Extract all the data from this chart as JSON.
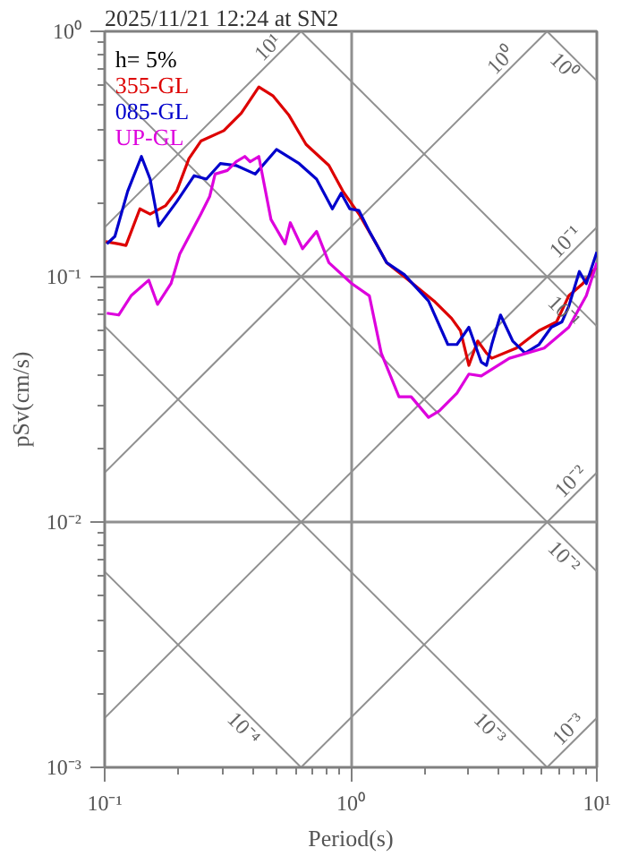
{
  "chart_data": {
    "type": "line",
    "title": "2025/11/21 12:24 at SN2",
    "xlabel": "Period(s)",
    "ylabel": "pSv(cm/s)",
    "log": "xy",
    "grid": true,
    "legend": "top left",
    "xlim": [
      0.1,
      10
    ],
    "ylim": [
      0.001,
      1
    ],
    "xticks": [
      {
        "value": 0.1,
        "label": "10⁻¹"
      },
      {
        "value": 1,
        "label": "10⁰"
      },
      {
        "value": 10,
        "label": "10¹"
      }
    ],
    "yticks": [
      {
        "value": 0.001,
        "label": "10⁻³"
      },
      {
        "value": 0.01,
        "label": "10⁻²"
      },
      {
        "value": 0.1,
        "label": "10⁻¹"
      },
      {
        "value": 1,
        "label": "10⁰"
      }
    ],
    "annotations": [
      "h= 5%",
      {
        "text": "10¹",
        "x": 0.499,
        "y": 0.794
      },
      {
        "text": "10⁰",
        "x": 4.41,
        "y": 0.702
      },
      {
        "text": "10⁻¹",
        "x": 8.08,
        "y": 0.128
      },
      {
        "text": "10⁻²",
        "x": 8.49,
        "y": 0.0135
      },
      {
        "text": "10⁻³",
        "x": 8.3,
        "y": 0.00132
      },
      {
        "text": "10⁰",
        "x": 8.0,
        "y": 0.785
      },
      {
        "text": "10⁻¹",
        "x": 8.0,
        "y": 0.0785
      },
      {
        "text": "10⁻²",
        "x": 8.0,
        "y": 0.00785
      },
      {
        "text": "10⁻³",
        "x": 4.0,
        "y": 0.00157
      },
      {
        "text": "10⁻⁴",
        "x": 0.4,
        "y": 0.00157
      }
    ],
    "series": [
      {
        "color": "#909090",
        "x": [
          0.1,
          0.628
        ],
        "values": [
          0.159,
          1
        ]
      },
      {
        "color": "#909090",
        "x": [
          0.1,
          6.28
        ],
        "values": [
          0.0159,
          1
        ]
      },
      {
        "color": "#909090",
        "x": [
          0.1,
          10
        ],
        "values": [
          0.00159,
          0.159
        ]
      },
      {
        "color": "#909090",
        "x": [
          0.628,
          10
        ],
        "values": [
          0.001,
          0.0159
        ]
      },
      {
        "color": "#909090",
        "x": [
          6.28,
          10
        ],
        "values": [
          0.001,
          0.00159
        ]
      },
      {
        "color": "#909090",
        "x": [
          6.28,
          10
        ],
        "values": [
          1,
          0.628
        ]
      },
      {
        "color": "#909090",
        "x": [
          0.628,
          10
        ],
        "values": [
          1,
          0.0628
        ]
      },
      {
        "color": "#909090",
        "x": [
          0.1,
          10
        ],
        "values": [
          0.628,
          0.00628
        ]
      },
      {
        "color": "#909090",
        "x": [
          0.1,
          6.28
        ],
        "values": [
          0.0628,
          0.001
        ]
      },
      {
        "color": "#909090",
        "x": [
          0.1,
          0.628
        ],
        "values": [
          0.00628,
          0.001
        ]
      },
      {
        "name": "355-GL",
        "color": "#dd0000",
        "x": [
          0.101,
          0.114,
          0.122,
          0.139,
          0.153,
          0.177,
          0.196,
          0.22,
          0.246,
          0.305,
          0.359,
          0.423,
          0.482,
          0.559,
          0.658,
          0.815,
          0.929,
          1.08,
          1.27,
          1.4,
          1.65,
          2.18,
          2.57,
          2.79,
          3.02,
          3.28,
          3.56,
          3.74,
          4.71,
          5.82,
          6.86,
          7.69,
          8.77,
          10
        ],
        "values": [
          0.139,
          0.136,
          0.134,
          0.189,
          0.18,
          0.195,
          0.223,
          0.303,
          0.357,
          0.394,
          0.464,
          0.593,
          0.547,
          0.457,
          0.346,
          0.284,
          0.223,
          0.18,
          0.136,
          0.114,
          0.1,
          0.0796,
          0.0676,
          0.0603,
          0.0435,
          0.0547,
          0.0488,
          0.0465,
          0.0512,
          0.0603,
          0.0654,
          0.0836,
          0.0937,
          0.11
        ]
      },
      {
        "name": "085-GL",
        "color": "#0000cc",
        "x": [
          0.102,
          0.11,
          0.124,
          0.141,
          0.153,
          0.166,
          0.196,
          0.231,
          0.259,
          0.295,
          0.342,
          0.409,
          0.499,
          0.617,
          0.726,
          0.842,
          0.914,
          0.991,
          1.08,
          1.19,
          1.4,
          1.65,
          2.07,
          2.48,
          2.7,
          3.02,
          3.39,
          3.56,
          3.74,
          4.06,
          4.55,
          5.11,
          5.82,
          6.53,
          7.21,
          7.69,
          8.49,
          9.06,
          10
        ],
        "values": [
          0.136,
          0.146,
          0.223,
          0.309,
          0.25,
          0.161,
          0.202,
          0.258,
          0.25,
          0.289,
          0.284,
          0.262,
          0.33,
          0.289,
          0.25,
          0.189,
          0.219,
          0.189,
          0.186,
          0.153,
          0.114,
          0.102,
          0.0796,
          0.0529,
          0.0529,
          0.0622,
          0.0449,
          0.0435,
          0.0529,
          0.0698,
          0.0547,
          0.0488,
          0.0529,
          0.0622,
          0.0654,
          0.0757,
          0.105,
          0.0937,
          0.126
        ]
      },
      {
        "name": "UP-GL",
        "color": "#dd00dd",
        "x": [
          0.102,
          0.114,
          0.128,
          0.151,
          0.164,
          0.186,
          0.202,
          0.246,
          0.267,
          0.281,
          0.315,
          0.342,
          0.371,
          0.39,
          0.423,
          0.474,
          0.541,
          0.568,
          0.637,
          0.726,
          0.815,
          1.01,
          1.19,
          1.33,
          1.57,
          1.76,
          2.07,
          2.29,
          2.7,
          3.02,
          3.39,
          4.41,
          6.11,
          7.69,
          9.06,
          10
        ],
        "values": [
          0.071,
          0.0698,
          0.0836,
          0.0968,
          0.0771,
          0.0937,
          0.124,
          0.18,
          0.212,
          0.262,
          0.271,
          0.294,
          0.309,
          0.294,
          0.309,
          0.171,
          0.136,
          0.166,
          0.13,
          0.153,
          0.114,
          0.0937,
          0.0836,
          0.0488,
          0.0324,
          0.0324,
          0.0267,
          0.0284,
          0.0335,
          0.0401,
          0.0394,
          0.0465,
          0.0512,
          0.0622,
          0.0836,
          0.114
        ]
      }
    ]
  }
}
